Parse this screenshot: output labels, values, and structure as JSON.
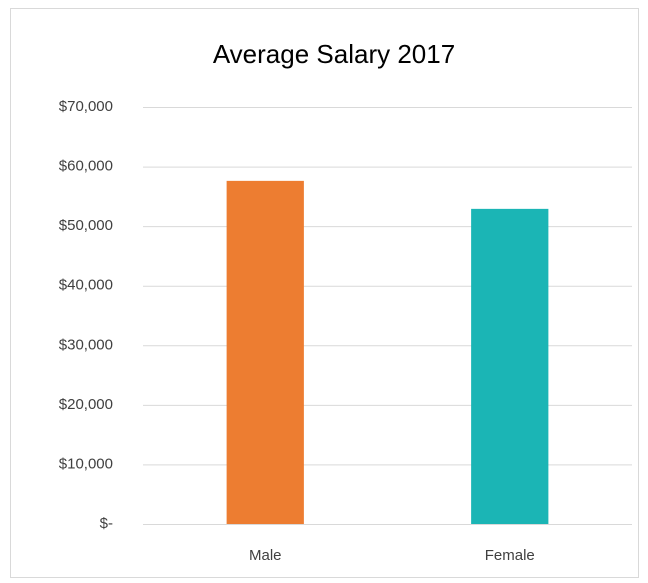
{
  "chart_data": {
    "type": "bar",
    "title": "Average Salary 2017",
    "categories": [
      "Male",
      "Female"
    ],
    "values": [
      57600,
      52900
    ],
    "colors": [
      "#ed7d31",
      "#1bb5b5"
    ],
    "ylim": [
      0,
      70000
    ],
    "yticks": [
      {
        "value": 0,
        "label": "$-"
      },
      {
        "value": 10000,
        "label": "$10,000"
      },
      {
        "value": 20000,
        "label": "$20,000"
      },
      {
        "value": 30000,
        "label": "$30,000"
      },
      {
        "value": 40000,
        "label": "$40,000"
      },
      {
        "value": 50000,
        "label": "$50,000"
      },
      {
        "value": 60000,
        "label": "$60,000"
      },
      {
        "value": 70000,
        "label": "$70,000"
      }
    ],
    "grid": true
  }
}
